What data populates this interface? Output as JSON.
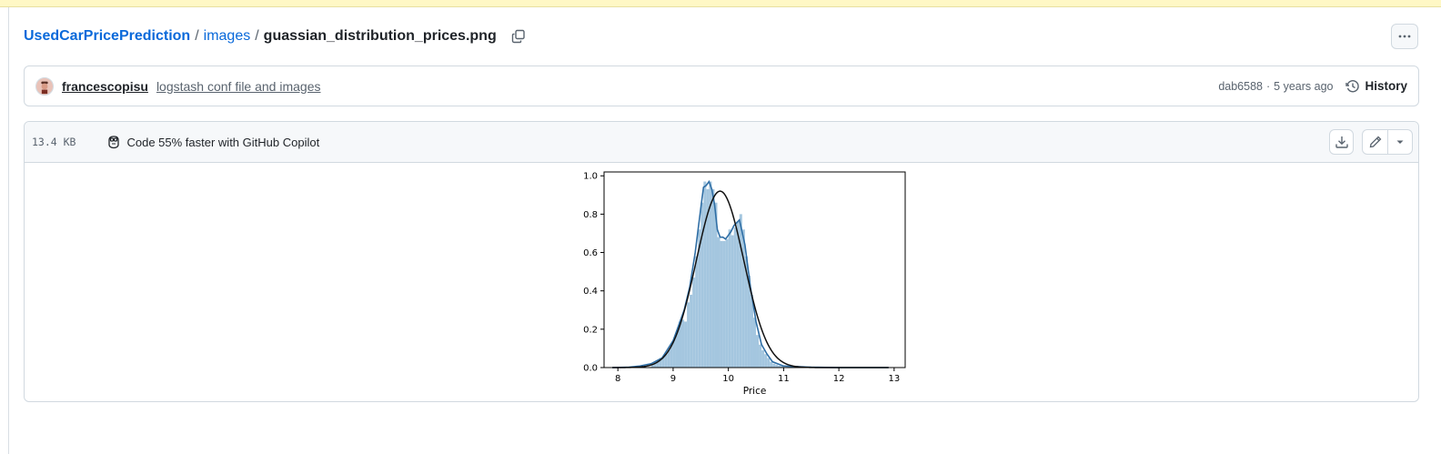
{
  "breadcrumb": {
    "repo": "UsedCarPricePrediction",
    "sep1": "/",
    "folder": "images",
    "sep2": "/",
    "file": "guassian_distribution_prices.png"
  },
  "commit": {
    "author": "francescopisu",
    "message": "logstash conf file and images",
    "hash": "dab6588",
    "dot": "·",
    "age": "5 years ago",
    "history_label": "History"
  },
  "file_header": {
    "size": "13.4 KB",
    "copilot_text": "Code 55% faster with GitHub Copilot"
  },
  "icons": {
    "copy": "copy-icon",
    "more": "kebab-horizontal-icon",
    "history": "history-icon",
    "copilot": "copilot-icon",
    "download": "download-icon",
    "edit": "pencil-icon",
    "dropdown": "triangle-down-icon"
  },
  "colors": {
    "link": "#0969da",
    "hist_fill": "#a4c6df",
    "kde_line": "#2f6ea5",
    "fit_line": "#111111"
  },
  "chart_data": {
    "type": "histogram",
    "xlabel": "Price",
    "xlim": [
      7.75,
      13.2
    ],
    "ylim": [
      0,
      1.02
    ],
    "xticks": [
      "8",
      "9",
      "10",
      "11",
      "12",
      "13"
    ],
    "yticks": [
      "0.0",
      "0.2",
      "0.4",
      "0.6",
      "0.8",
      "1.0"
    ],
    "bin_width": 0.05,
    "bins": [
      {
        "x": 8.6,
        "y": 0.02
      },
      {
        "x": 8.65,
        "y": 0.03
      },
      {
        "x": 8.7,
        "y": 0.04
      },
      {
        "x": 8.75,
        "y": 0.05
      },
      {
        "x": 8.8,
        "y": 0.06
      },
      {
        "x": 8.85,
        "y": 0.07
      },
      {
        "x": 8.9,
        "y": 0.09
      },
      {
        "x": 8.95,
        "y": 0.12
      },
      {
        "x": 9.0,
        "y": 0.15
      },
      {
        "x": 9.05,
        "y": 0.19
      },
      {
        "x": 9.1,
        "y": 0.24
      },
      {
        "x": 9.15,
        "y": 0.25
      },
      {
        "x": 9.2,
        "y": 0.24
      },
      {
        "x": 9.25,
        "y": 0.34
      },
      {
        "x": 9.3,
        "y": 0.38
      },
      {
        "x": 9.35,
        "y": 0.47
      },
      {
        "x": 9.4,
        "y": 0.58
      },
      {
        "x": 9.45,
        "y": 0.72
      },
      {
        "x": 9.5,
        "y": 0.86
      },
      {
        "x": 9.55,
        "y": 0.97
      },
      {
        "x": 9.6,
        "y": 0.93
      },
      {
        "x": 9.65,
        "y": 0.97
      },
      {
        "x": 9.7,
        "y": 0.93
      },
      {
        "x": 9.75,
        "y": 0.86
      },
      {
        "x": 9.8,
        "y": 0.68
      },
      {
        "x": 9.85,
        "y": 0.66
      },
      {
        "x": 9.9,
        "y": 0.66
      },
      {
        "x": 9.95,
        "y": 0.67
      },
      {
        "x": 10.0,
        "y": 0.72
      },
      {
        "x": 10.05,
        "y": 0.69
      },
      {
        "x": 10.1,
        "y": 0.73
      },
      {
        "x": 10.15,
        "y": 0.76
      },
      {
        "x": 10.2,
        "y": 0.8
      },
      {
        "x": 10.25,
        "y": 0.72
      },
      {
        "x": 10.3,
        "y": 0.58
      },
      {
        "x": 10.35,
        "y": 0.48
      },
      {
        "x": 10.4,
        "y": 0.38
      },
      {
        "x": 10.45,
        "y": 0.26
      },
      {
        "x": 10.5,
        "y": 0.17
      },
      {
        "x": 10.55,
        "y": 0.12
      },
      {
        "x": 10.6,
        "y": 0.09
      },
      {
        "x": 10.65,
        "y": 0.07
      },
      {
        "x": 10.7,
        "y": 0.05
      },
      {
        "x": 10.75,
        "y": 0.03
      },
      {
        "x": 10.8,
        "y": 0.02
      },
      {
        "x": 10.85,
        "y": 0.015
      },
      {
        "x": 10.9,
        "y": 0.01
      },
      {
        "x": 10.95,
        "y": 0.008
      }
    ],
    "kde": [
      [
        7.9,
        0.0
      ],
      [
        8.2,
        0.002
      ],
      [
        8.4,
        0.008
      ],
      [
        8.6,
        0.02
      ],
      [
        8.8,
        0.05
      ],
      [
        9.0,
        0.14
      ],
      [
        9.1,
        0.22
      ],
      [
        9.2,
        0.3
      ],
      [
        9.3,
        0.42
      ],
      [
        9.4,
        0.6
      ],
      [
        9.5,
        0.83
      ],
      [
        9.55,
        0.94
      ],
      [
        9.6,
        0.95
      ],
      [
        9.65,
        0.97
      ],
      [
        9.7,
        0.93
      ],
      [
        9.75,
        0.85
      ],
      [
        9.8,
        0.72
      ],
      [
        9.85,
        0.68
      ],
      [
        9.9,
        0.68
      ],
      [
        9.95,
        0.67
      ],
      [
        10.0,
        0.69
      ],
      [
        10.05,
        0.71
      ],
      [
        10.1,
        0.74
      ],
      [
        10.2,
        0.77
      ],
      [
        10.3,
        0.64
      ],
      [
        10.4,
        0.42
      ],
      [
        10.5,
        0.24
      ],
      [
        10.6,
        0.12
      ],
      [
        10.7,
        0.07
      ],
      [
        10.8,
        0.03
      ],
      [
        11.0,
        0.008
      ],
      [
        11.5,
        0.002
      ],
      [
        12.0,
        0.0
      ],
      [
        12.9,
        0.0
      ]
    ],
    "normal_fit": {
      "mean": 9.85,
      "sd": 0.43,
      "peak": 0.92,
      "x_range": [
        7.9,
        12.9
      ]
    }
  }
}
